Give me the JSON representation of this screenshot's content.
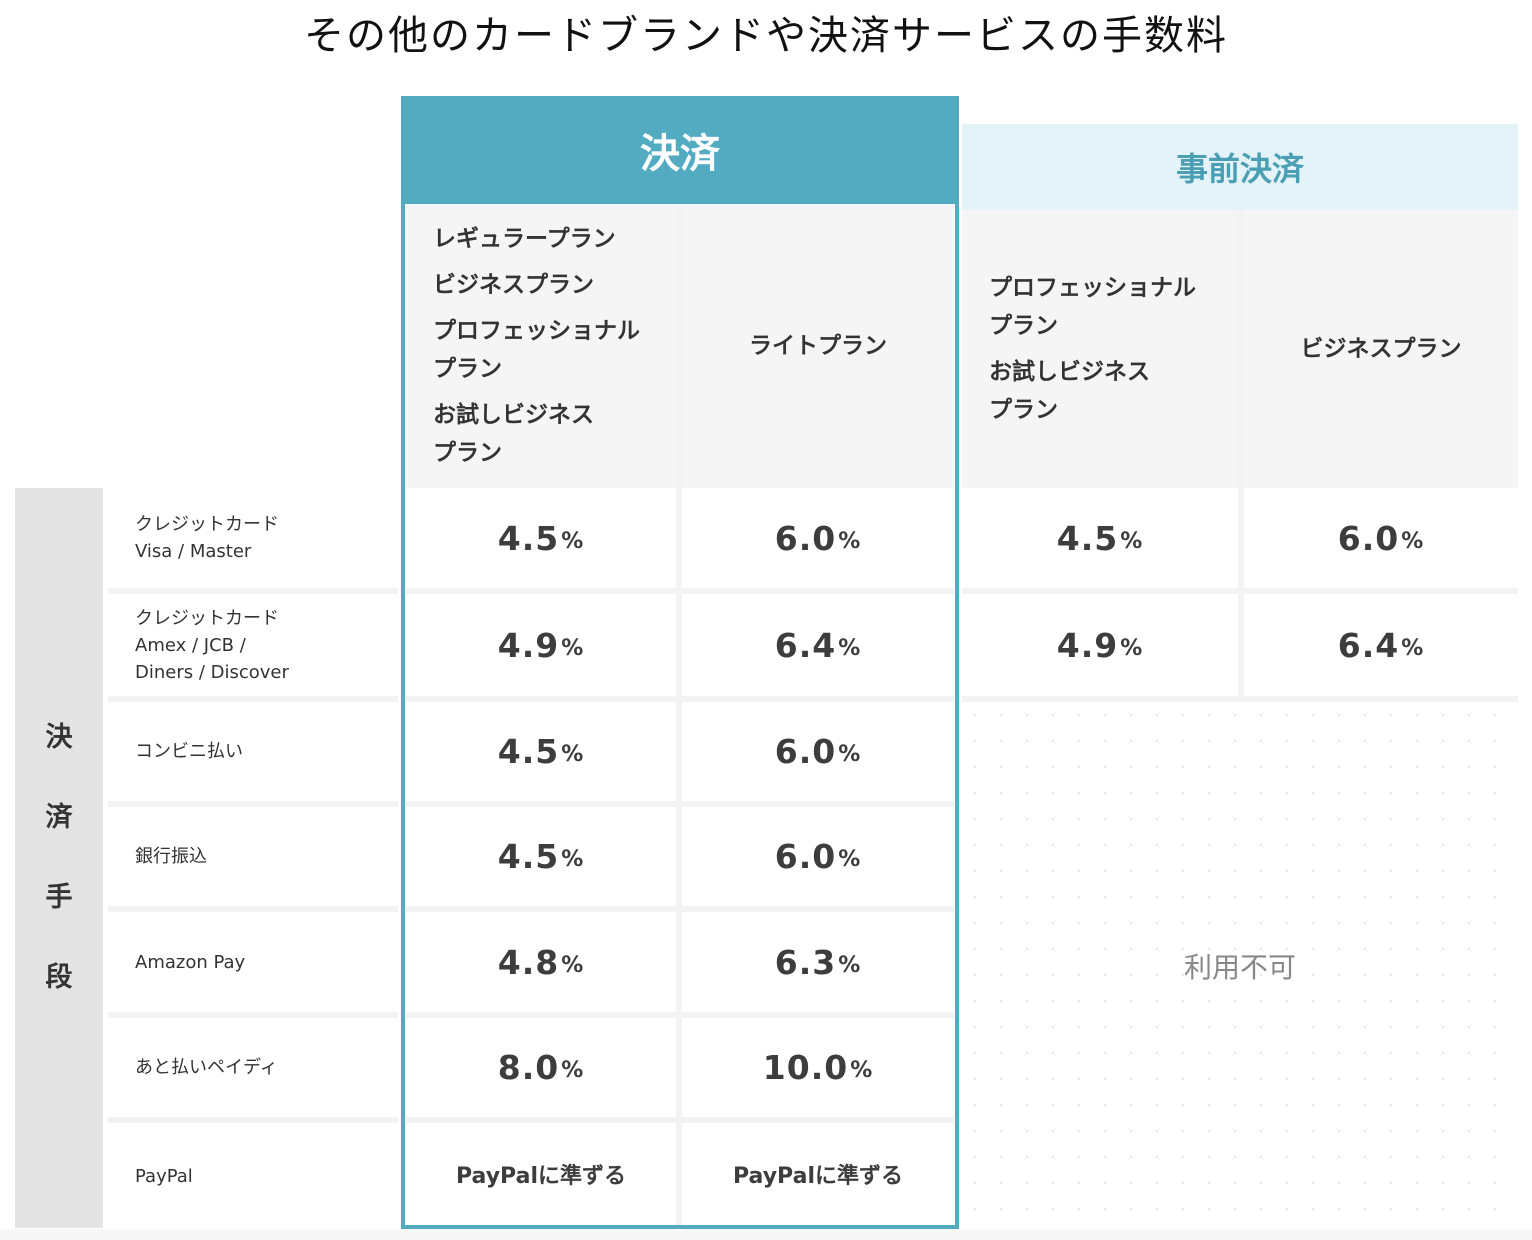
{
  "title": "その他のカードブランドや決済サービスの手数料",
  "headers": {
    "payment": "決済",
    "prepayment": "事前決済"
  },
  "plans": {
    "payment_col1": [
      "レギュラープラン",
      "ビジネスプラン",
      "プロフェッショナル",
      "プラン",
      "お試しビジネス",
      "プラン"
    ],
    "payment_col2": "ライトプラン",
    "pre_col1": [
      "プロフェッショナル",
      "プラン",
      "お試しビジネス",
      "プラン"
    ],
    "pre_col2": "ビジネスプラン"
  },
  "sidebar": {
    "label_chars": [
      "決",
      "済",
      "手",
      "段"
    ]
  },
  "percent_sign": "%",
  "rows": [
    {
      "label": [
        "クレジットカード",
        "Visa / Master"
      ],
      "v1": "4.5",
      "v2": "6.0",
      "p1": "4.5",
      "p2": "6.0"
    },
    {
      "label": [
        "クレジットカード",
        "Amex / JCB /",
        "Diners / Discover"
      ],
      "v1": "4.9",
      "v2": "6.4",
      "p1": "4.9",
      "p2": "6.4"
    },
    {
      "label": [
        "コンビニ払い"
      ],
      "v1": "4.5",
      "v2": "6.0"
    },
    {
      "label": [
        "銀行振込"
      ],
      "v1": "4.5",
      "v2": "6.0"
    },
    {
      "label": [
        "Amazon Pay"
      ],
      "v1": "4.8",
      "v2": "6.3"
    },
    {
      "label": [
        "あと払いペイディ"
      ],
      "v1": "8.0",
      "v2": "10.0"
    },
    {
      "label": [
        "PayPal"
      ],
      "t1": "PayPalに準ずる",
      "t2": "PayPalに準ずる"
    }
  ],
  "unavailable": "利用不可"
}
